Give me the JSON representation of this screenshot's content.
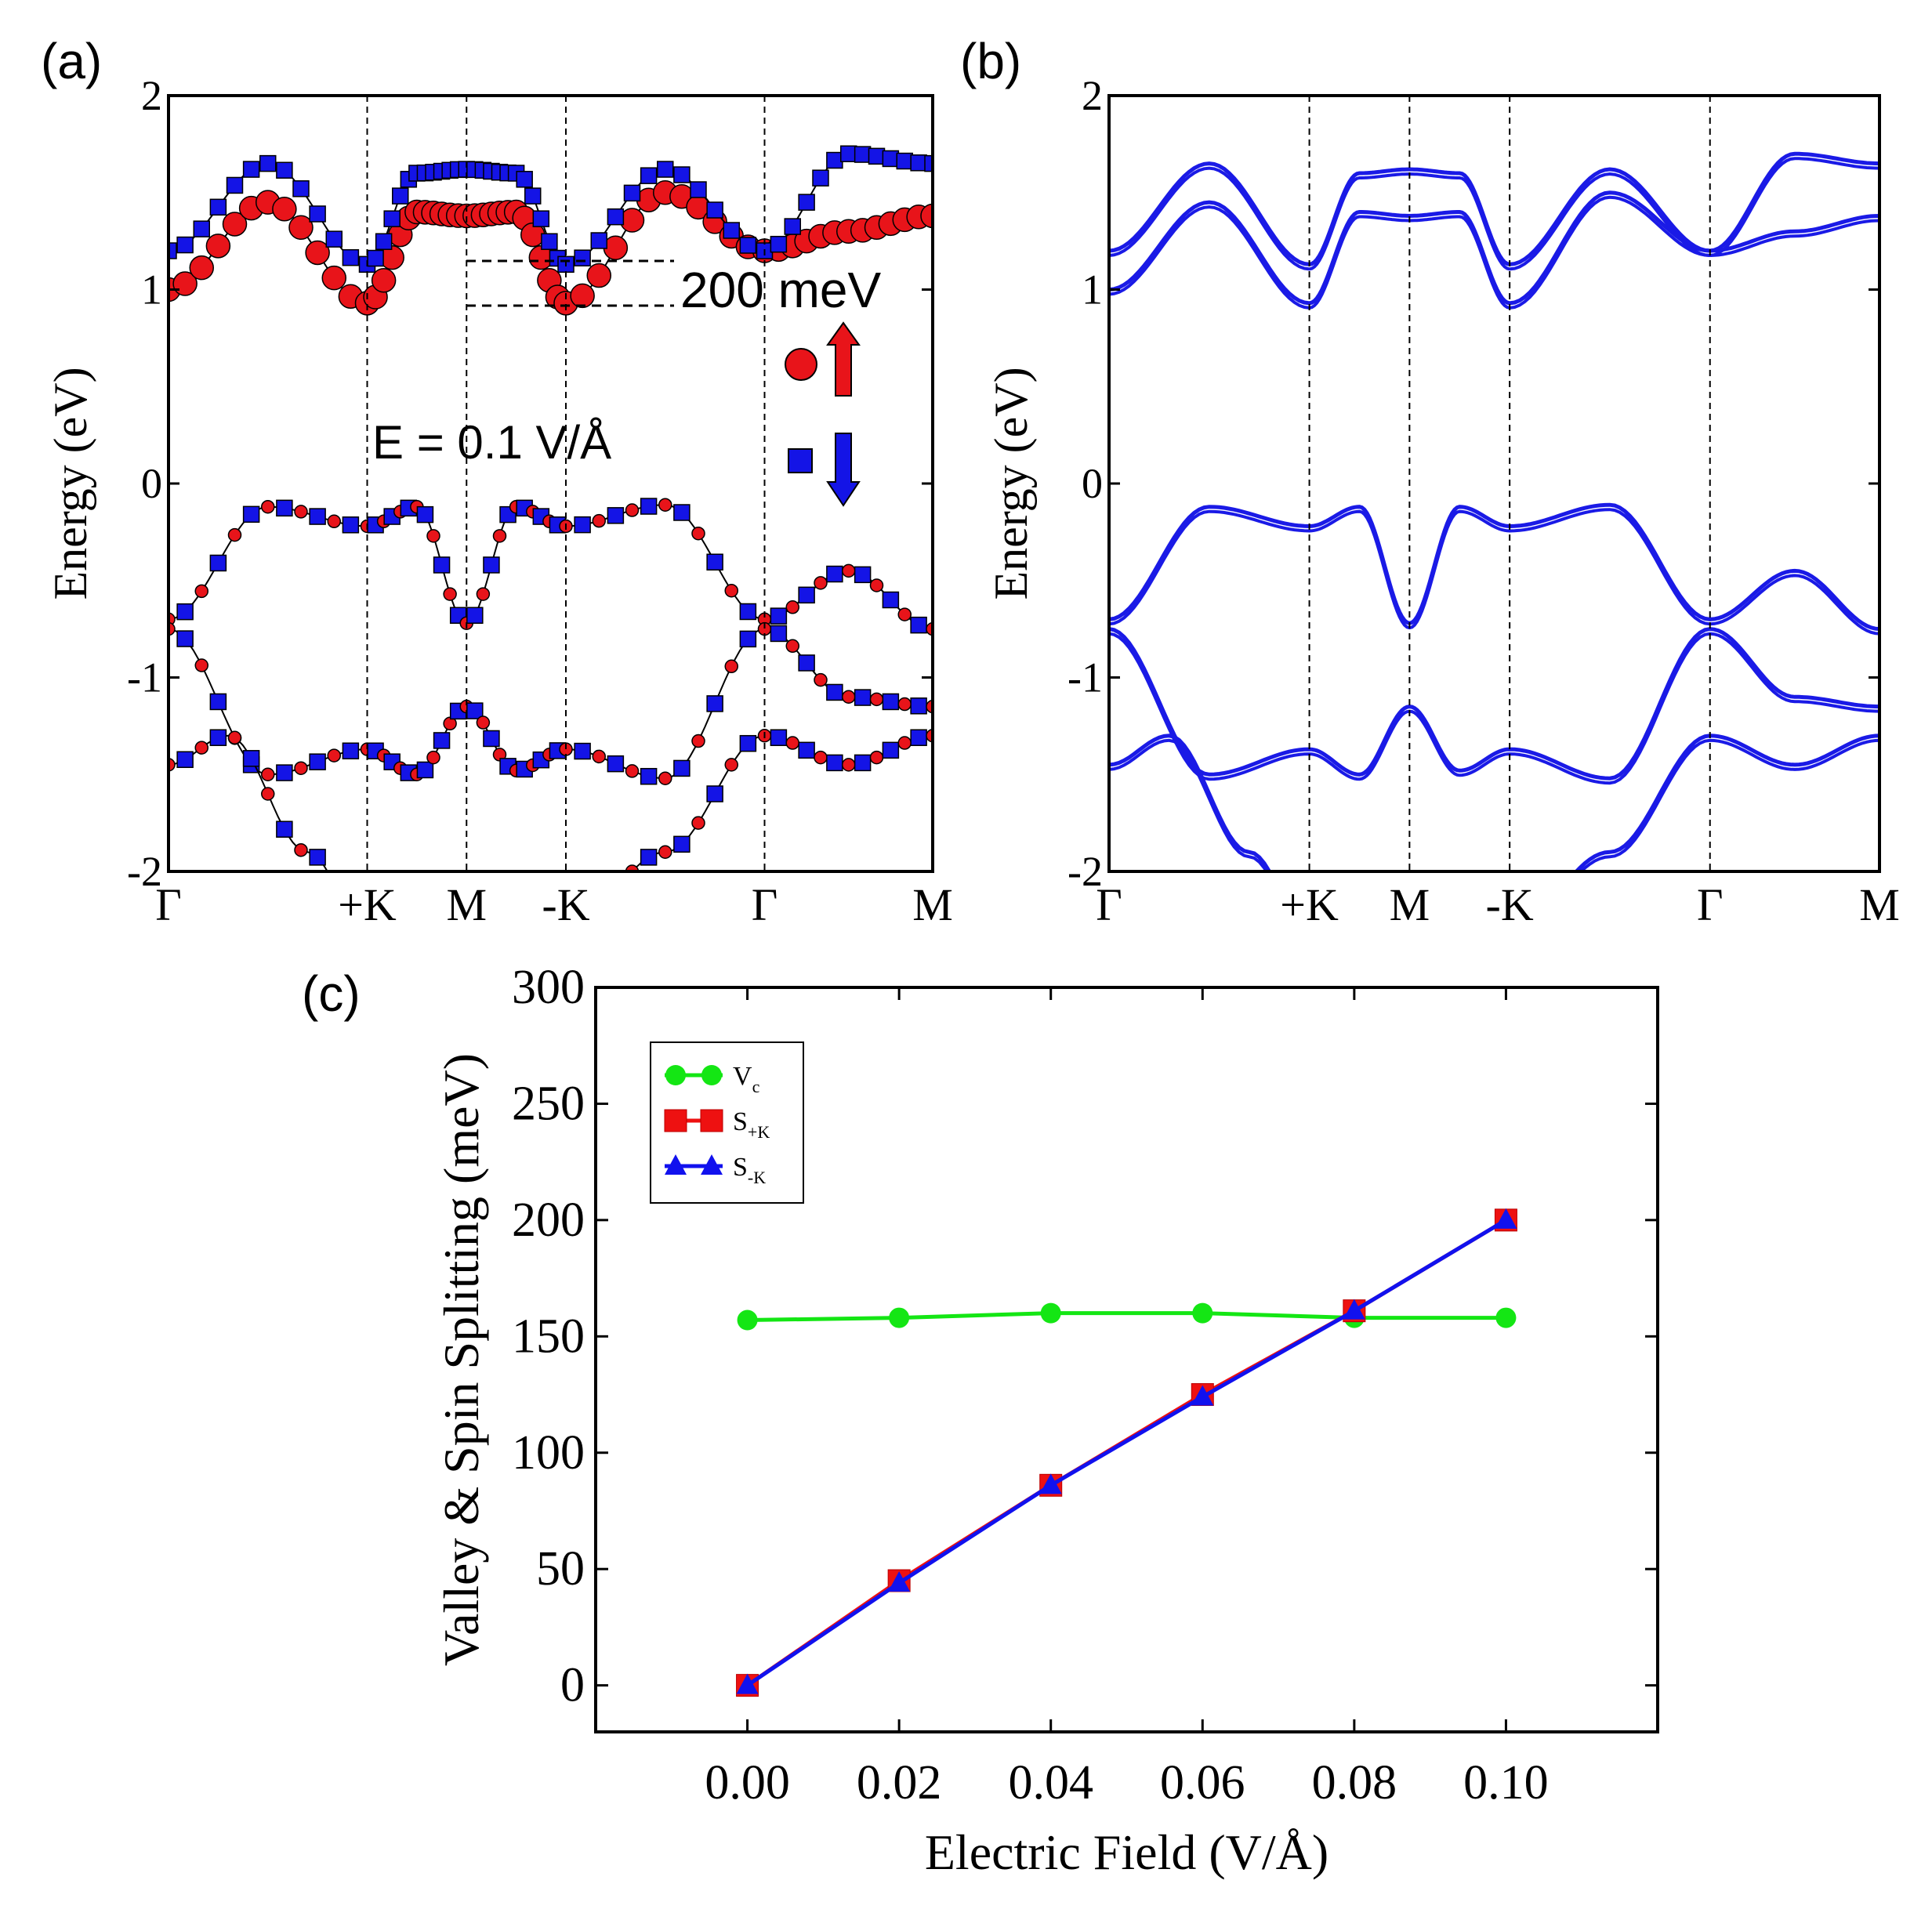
{
  "panels": {
    "a": {
      "label": "(a)"
    },
    "b": {
      "label": "(b)"
    },
    "c": {
      "label": "(c)"
    }
  },
  "colors": {
    "spin_up": "#e8141a",
    "spin_down": "#1414e6",
    "band_b": "#1a1ae6",
    "vc": "#14e614",
    "s_plus_k": "#ee1111",
    "s_minus_k": "#1111ee"
  },
  "chart_data": [
    {
      "id": "a",
      "type": "line",
      "subtype": "spin-projected band structure",
      "ylabel": "Energy (eV)",
      "ylim": [
        -2,
        2
      ],
      "yticks": [
        "2",
        "1",
        "0",
        "-1",
        "-2"
      ],
      "kpath": [
        "Γ",
        "+K",
        "M",
        "-K",
        "Γ",
        "M"
      ],
      "annotations": {
        "field": "E = 0.1 V/Å",
        "splitting": "200 meV",
        "legend": [
          {
            "marker": "circle",
            "arrow": "up",
            "color": "#e8141a"
          },
          {
            "marker": "square",
            "arrow": "down",
            "color": "#1414e6"
          }
        ]
      },
      "bands": [
        {
          "k": [
            0,
            0.5,
            1,
            1.5,
            2,
            2.5,
            3,
            3.5,
            4,
            4.5,
            5
          ],
          "E": [
            -0.7,
            -0.12,
            -0.22,
            -0.12,
            -0.72,
            -0.12,
            -0.22,
            -0.11,
            -0.7,
            -0.45,
            -0.75
          ]
        },
        {
          "k": [
            0,
            0.5,
            1,
            1.5,
            2,
            2.5,
            3,
            3.5,
            4,
            4.5,
            5
          ],
          "E": [
            -0.75,
            -1.5,
            -1.37,
            -1.5,
            -1.15,
            -1.48,
            -1.37,
            -1.52,
            -0.75,
            -1.1,
            -1.15
          ]
        },
        {
          "k": [
            0,
            0.3,
            0.7,
            1,
            1.5,
            2,
            2.5,
            3,
            3.5,
            4,
            4.5,
            5
          ],
          "E": [
            -1.45,
            -1.3,
            -1.9,
            -2.3,
            -2.3,
            -2.3,
            -2.3,
            -2.3,
            -1.9,
            -1.3,
            -1.45,
            -1.3
          ]
        },
        {
          "k": [
            0,
            0.5,
            1,
            1.5,
            2,
            2.5,
            3,
            3.5,
            4,
            4.5,
            5
          ],
          "E": [
            1.0,
            1.45,
            0.93,
            1.4,
            1.38,
            1.4,
            0.93,
            1.5,
            1.2,
            1.3,
            1.38
          ],
          "spin": "up"
        },
        {
          "k": [
            0,
            0.5,
            1,
            1.5,
            2,
            2.5,
            3,
            3.5,
            4,
            4.5,
            5
          ],
          "E": [
            1.2,
            1.65,
            1.13,
            1.6,
            1.62,
            1.6,
            1.13,
            1.62,
            1.2,
            1.7,
            1.65
          ],
          "spin": "down"
        }
      ]
    },
    {
      "id": "b",
      "type": "line",
      "subtype": "band structure",
      "ylabel": "Energy (eV)",
      "ylim": [
        -2,
        2
      ],
      "yticks": [
        "2",
        "1",
        "0",
        "-1",
        "-2"
      ],
      "kpath": [
        "Γ",
        "+K",
        "M",
        "-K",
        "Γ",
        "M"
      ]
    },
    {
      "id": "c",
      "type": "line",
      "xlabel": "Electric Field (V/Å)",
      "ylabel": "Valley & Spin Splitting (meV)",
      "xlim": [
        -0.02,
        0.12
      ],
      "ylim": [
        -20,
        300
      ],
      "xticks": [
        "0.00",
        "0.02",
        "0.04",
        "0.06",
        "0.08",
        "0.10"
      ],
      "yticks": [
        "0",
        "50",
        "100",
        "150",
        "200",
        "250",
        "300"
      ],
      "x": [
        0.0,
        0.02,
        0.04,
        0.06,
        0.08,
        0.1
      ],
      "series": [
        {
          "name": "V",
          "sub": "c",
          "marker": "circle",
          "color": "#14e614",
          "values": [
            157,
            158,
            160,
            160,
            158,
            158
          ]
        },
        {
          "name": "S",
          "sub": "+K",
          "marker": "square",
          "color": "#ee1111",
          "values": [
            0,
            45,
            86,
            125,
            161,
            200
          ]
        },
        {
          "name": "S",
          "sub": "-K",
          "marker": "triangle",
          "color": "#1111ee",
          "values": [
            0,
            44,
            86,
            124,
            161,
            200
          ]
        }
      ]
    }
  ]
}
